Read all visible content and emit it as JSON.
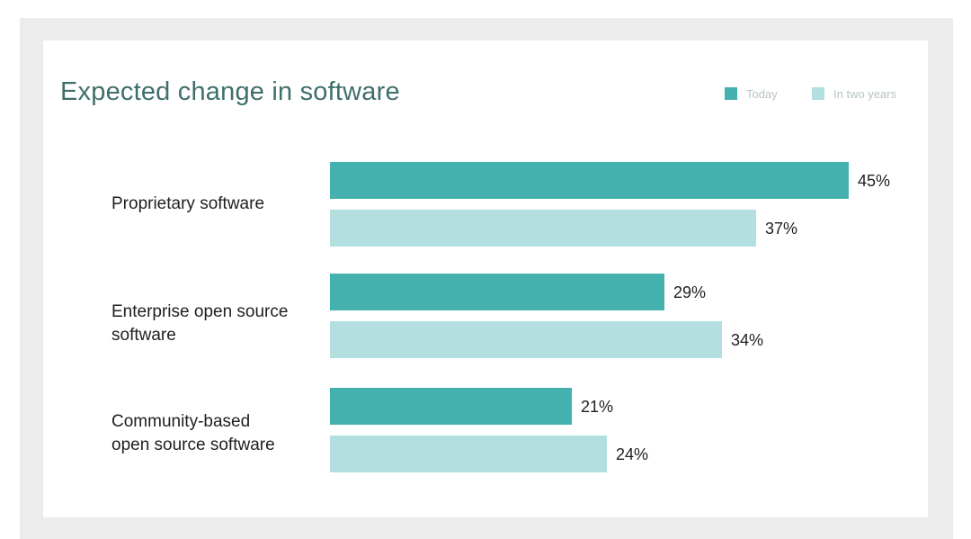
{
  "chart_data": {
    "type": "bar",
    "orientation": "horizontal",
    "title": "Expected change in software",
    "categories": [
      "Proprietary software",
      "Enterprise open source software",
      "Community-based open source software"
    ],
    "category_lines": [
      [
        "Proprietary software"
      ],
      [
        "Enterprise open source",
        "software"
      ],
      [
        "Community-based",
        "open source software"
      ]
    ],
    "series": [
      {
        "name": "Today",
        "color": "#45b1ae",
        "values": [
          45,
          29,
          21
        ],
        "labels": [
          "45%",
          "29%",
          "21%"
        ]
      },
      {
        "name": "In two years",
        "color": "#b3dfe0",
        "values": [
          37,
          34,
          24
        ],
        "labels": [
          "37%",
          "34%",
          "24%"
        ]
      }
    ],
    "value_unit": "%",
    "legend_position": "top-right",
    "grid": false,
    "xlim": [
      0,
      45
    ]
  }
}
